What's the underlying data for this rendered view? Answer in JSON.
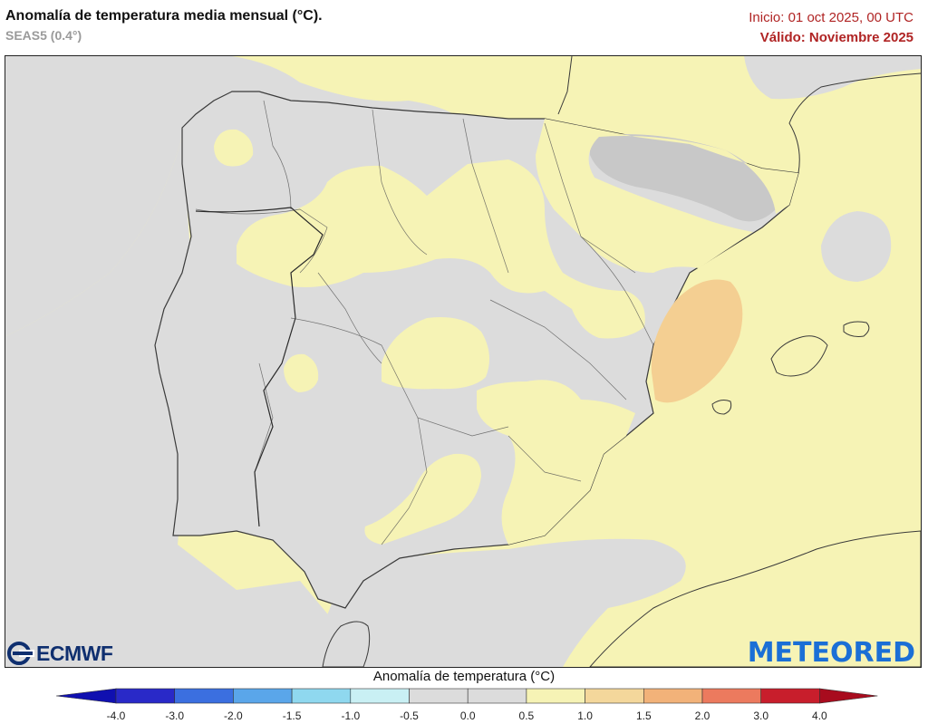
{
  "header": {
    "title": "Anomalía de temperatura media mensual (°C).",
    "subtitle": "SEAS5 (0.4°)",
    "init": "Inicio: 01 oct 2025, 00 UTC",
    "valid": "Válido: Noviembre 2025"
  },
  "map": {
    "region": "Península Ibérica",
    "background_anomaly_class": "0.5 a 1.0",
    "land_neutral_color": "#dcdcdc",
    "warm_color": "#f6f3b5",
    "hot_color": "#f4cf92",
    "border_color": "#3a3a3a"
  },
  "logos": {
    "left": "ECMWF",
    "right": "METEORED"
  },
  "legend": {
    "title": "Anomalía de temperatura (°C)",
    "ticks": [
      "-4.0",
      "-3.0",
      "-2.0",
      "-1.5",
      "-1.0",
      "-0.5",
      "0.0",
      "0.5",
      "1.0",
      "1.5",
      "2.0",
      "3.0",
      "4.0"
    ],
    "colors": [
      "#2929c8",
      "#3b6fe0",
      "#5aa6ea",
      "#8fd8ef",
      "#c9f0f4",
      "#dcdcdc",
      "#dcdcdc",
      "#f6f3b5",
      "#f4d79b",
      "#f2b279",
      "#ec7a5e",
      "#c81e2c"
    ],
    "low_end_color": "#1010b0",
    "high_end_color": "#a80c1e"
  }
}
